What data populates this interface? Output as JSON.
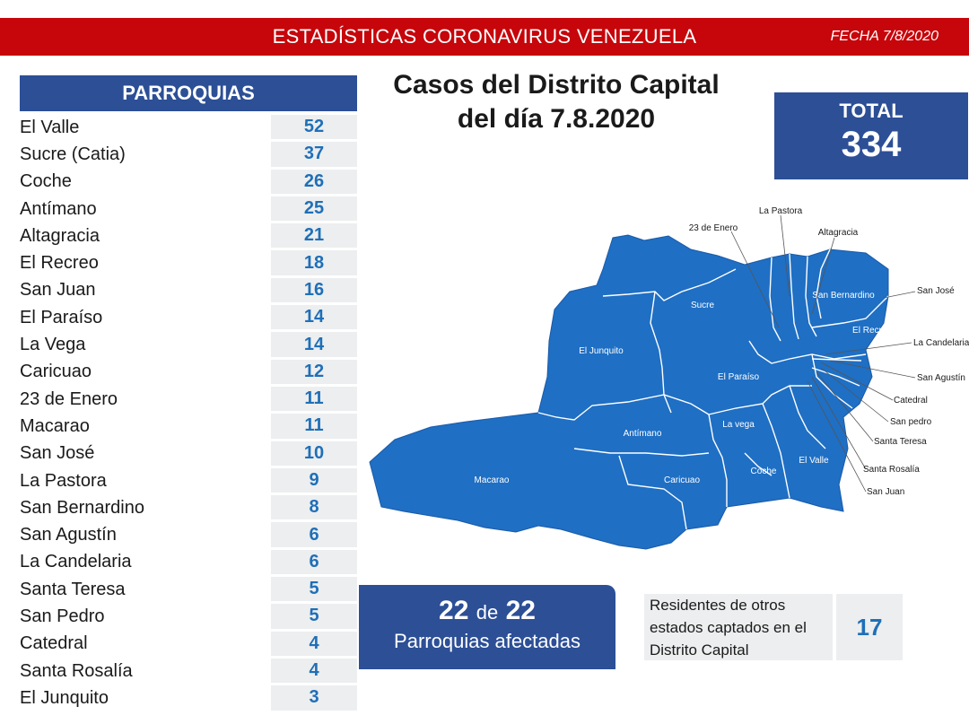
{
  "header": {
    "title": "ESTADÍSTICAS CORONAVIRUS VENEZUELA",
    "date": "FECHA 7/8/2020"
  },
  "table": {
    "heading": "PARROQUIAS",
    "rows": [
      {
        "name": "El Valle",
        "value": "52"
      },
      {
        "name": "Sucre (Catia)",
        "value": "37"
      },
      {
        "name": "Coche",
        "value": "26"
      },
      {
        "name": "Antímano",
        "value": "25"
      },
      {
        "name": "Altagracia",
        "value": "21"
      },
      {
        "name": "El Recreo",
        "value": "18"
      },
      {
        "name": "San Juan",
        "value": "16"
      },
      {
        "name": "El Paraíso",
        "value": "14"
      },
      {
        "name": "La Vega",
        "value": "14"
      },
      {
        "name": "Caricuao",
        "value": "12"
      },
      {
        "name": "23 de Enero",
        "value": "11"
      },
      {
        "name": "Macarao",
        "value": "11"
      },
      {
        "name": "San José",
        "value": "10"
      },
      {
        "name": "La Pastora",
        "value": "9"
      },
      {
        "name": "San Bernardino",
        "value": "8"
      },
      {
        "name": "San Agustín",
        "value": "6"
      },
      {
        "name": "La Candelaria",
        "value": "6"
      },
      {
        "name": "Santa Teresa",
        "value": "5"
      },
      {
        "name": "San Pedro",
        "value": "5"
      },
      {
        "name": "Catedral",
        "value": "4"
      },
      {
        "name": "Santa Rosalía",
        "value": "4"
      },
      {
        "name": "El Junquito",
        "value": "3"
      }
    ]
  },
  "casos": {
    "line1": "Casos del Distrito Capital",
    "line2": "del día 7.8.2020"
  },
  "total": {
    "label": "TOTAL",
    "value": "334"
  },
  "map_labels": {
    "inside": [
      "Sucre",
      "El Junquito",
      "El Paraíso",
      "Antímano",
      "La vega",
      "El Valle",
      "Coche",
      "Caricuao",
      "Macarao",
      "El Recreo",
      "San Bernardino"
    ],
    "callouts": [
      "La Pastora",
      "23 de Enero",
      "Altagracia",
      "San José",
      "La Candelaria",
      "San Agustín",
      "Catedral",
      "San pedro",
      "Santa Teresa",
      "Santa Rosalía",
      "San Juan"
    ]
  },
  "afectadas": {
    "count": "22",
    "de": "de",
    "total": "22",
    "label": "Parroquias afectadas"
  },
  "residentes": {
    "line1": "Residentes de otros",
    "line2": "estados captados en el",
    "line3": "Distrito Capital",
    "value": "17"
  },
  "colors": {
    "header_red": "#c6060b",
    "navy": "#2c4f96",
    "value_blue": "#1f6fb8",
    "map_blue": "#1f6fc4",
    "cell_gray": "#eceeef"
  }
}
